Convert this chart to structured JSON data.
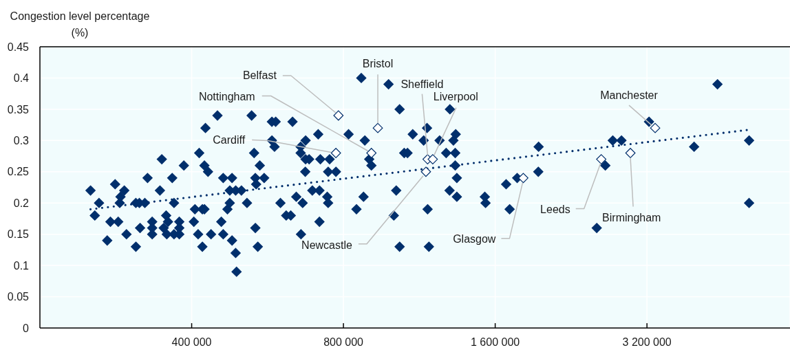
{
  "chart_data": {
    "type": "scatter",
    "ylabel": "Congestion level percentage\n(%)",
    "log": "x",
    "xlim": [
      200000,
      6150000
    ],
    "xticks": [
      {
        "value": 400000,
        "label": "400 000"
      },
      {
        "value": 800000,
        "label": "800 000"
      },
      {
        "value": 1600000,
        "label": "1 600 000"
      },
      {
        "value": 3200000,
        "label": "3 200 000"
      }
    ],
    "ylim": [
      0,
      0.45
    ],
    "yticks": [
      0,
      0.05,
      0.1,
      0.15,
      0.2,
      0.25,
      0.3,
      0.35,
      0.4,
      0.45
    ],
    "grid": true,
    "marker": "diamond",
    "line_style": "dotted",
    "series": [
      {
        "color": "#002f6c",
        "x": [
          252000,
          257000,
          262000,
          272000,
          276000,
          282000,
          286000,
          288000,
          289000,
          294000,
          297000,
          310000,
          310000,
          315000,
          316000,
          323000,
          327000,
          334000,
          334000,
          334000,
          346000,
          349000,
          352000,
          356000,
          357000,
          359000,
          366000,
          369000,
          369000,
          378000,
          378000,
          378000,
          386000,
          404000,
          406000,
          412000,
          414000,
          420000,
          424000,
          420000,
          424000,
          426000,
          431000,
          437000,
          450000,
          458000,
          462000,
          462000,
          471000,
          476000,
          476000,
          481000,
          481000,
          489000,
          489000,
          491000,
          502000,
          515000,
          526000,
          532000,
          535000,
          537000,
          535000,
          541000,
          546000,
          557000,
          577000,
          587000,
          577000,
          584000,
          600000,
          616000,
          629000,
          634000,
          645000,
          658000,
          658000,
          659000,
          664000,
          672000,
          673000,
          673000,
          684000,
          694000,
          713000,
          717000,
          717000,
          720000,
          743000,
          746000,
          746000,
          751000,
          773000,
          819000,
          849000,
          868000,
          877000,
          882000,
          900000,
          909000,
          983000,
          1007000,
          1018000,
          1034000,
          1034000,
          1056000,
          1072000,
          1098000,
          1154000,
          1172000,
          1175000,
          1182000,
          1241000,
          1279000,
          1299000,
          1301000,
          1322000,
          1333000,
          1333000,
          1336000,
          1343000,
          1343000,
          1526000,
          1531000,
          1682000,
          1709000,
          1769000,
          1948000,
          1951000,
          2544000,
          2646000,
          2737000,
          2848000,
          3230000,
          3969000,
          4416000,
          5102000,
          5102000
        ],
        "values": [
          0.22,
          0.18,
          0.2,
          0.14,
          0.17,
          0.23,
          0.17,
          0.2,
          0.21,
          0.22,
          0.15,
          0.13,
          0.2,
          0.2,
          0.16,
          0.2,
          0.24,
          0.17,
          0.16,
          0.15,
          0.22,
          0.27,
          0.16,
          0.18,
          0.15,
          0.17,
          0.24,
          0.2,
          0.15,
          0.17,
          0.16,
          0.15,
          0.26,
          0.17,
          0.19,
          0.15,
          0.28,
          0.19,
          0.19,
          0.13,
          0.26,
          0.32,
          0.25,
          0.15,
          0.34,
          0.17,
          0.24,
          0.15,
          0.19,
          0.2,
          0.22,
          0.24,
          0.14,
          0.22,
          0.12,
          0.09,
          0.22,
          0.2,
          0.34,
          0.28,
          0.24,
          0.23,
          0.16,
          0.13,
          0.26,
          0.24,
          0.33,
          0.33,
          0.3,
          0.29,
          0.2,
          0.18,
          0.18,
          0.33,
          0.21,
          0.29,
          0.28,
          0.15,
          0.2,
          0.25,
          0.3,
          0.27,
          0.27,
          0.22,
          0.31,
          0.22,
          0.17,
          0.27,
          0.21,
          0.25,
          0.2,
          0.27,
          0.25,
          0.31,
          0.19,
          0.4,
          0.21,
          0.3,
          0.27,
          0.26,
          0.39,
          0.18,
          0.22,
          0.35,
          0.13,
          0.28,
          0.28,
          0.31,
          0.3,
          0.32,
          0.19,
          0.13,
          0.3,
          0.28,
          0.22,
          0.35,
          0.3,
          0.28,
          0.26,
          0.31,
          0.24,
          0.21,
          0.21,
          0.2,
          0.23,
          0.19,
          0.24,
          0.25,
          0.29,
          0.16,
          0.26,
          0.3,
          0.3,
          0.33,
          0.29,
          0.39,
          0.3,
          0.2
        ]
      },
      {
        "color": "#ffffff",
        "x": [
          782000,
          936000,
          1175000,
          1203000,
          909000,
          3322000,
          773000,
          2597000,
          2967000,
          1819000,
          1166000
        ],
        "values": [
          0.34,
          0.32,
          0.27,
          0.27,
          0.28,
          0.32,
          0.28,
          0.27,
          0.28,
          0.24,
          0.25
        ]
      },
      {
        "type": "line",
        "color": "#002f6c",
        "marker": "none",
        "x": [
          252000,
          5076000
        ],
        "values": [
          0.19,
          0.317
        ]
      }
    ],
    "annotations": [
      {
        "text": "Belfast",
        "x": 782000,
        "y": 0.34
      },
      {
        "text": "Bristol",
        "x": 936000,
        "y": 0.32
      },
      {
        "text": "Sheffield",
        "x": 1175000,
        "y": 0.27
      },
      {
        "text": "Liverpool",
        "x": 1203000,
        "y": 0.27
      },
      {
        "text": "Nottingham",
        "x": 909000,
        "y": 0.28
      },
      {
        "text": "Manchester",
        "x": 3322000,
        "y": 0.32
      },
      {
        "text": "Cardiff",
        "x": 773000,
        "y": 0.28
      },
      {
        "text": "Leeds",
        "x": 2597000,
        "y": 0.27
      },
      {
        "text": "Birmingham",
        "x": 2967000,
        "y": 0.28
      },
      {
        "text": "Glasgow",
        "x": 1819000,
        "y": 0.24
      },
      {
        "text": "Newcastle",
        "x": 1166000,
        "y": 0.25
      }
    ]
  }
}
